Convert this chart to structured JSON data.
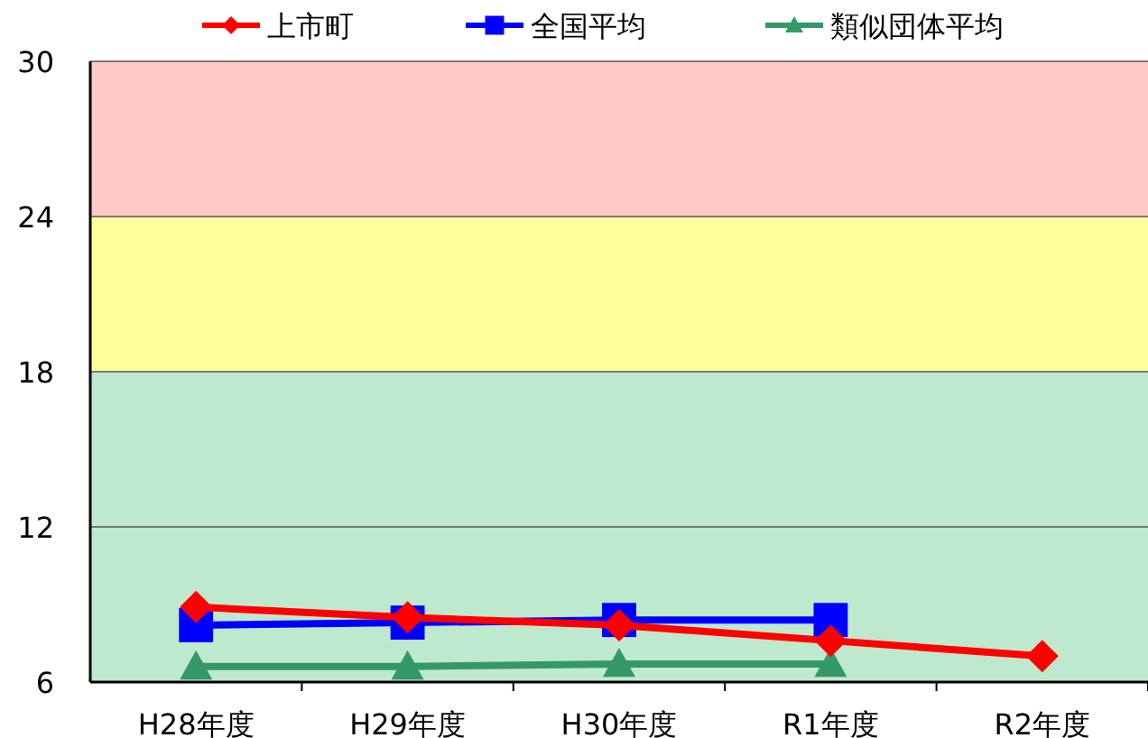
{
  "chart_data": {
    "type": "line",
    "categories": [
      "H28年度",
      "H29年度",
      "H30年度",
      "R1年度",
      "R2年度"
    ],
    "series": [
      {
        "name": "上市町",
        "color": "#ff0000",
        "marker": "diamond",
        "values": [
          8.9,
          8.5,
          8.2,
          7.6,
          7.0
        ]
      },
      {
        "name": "全国平均",
        "color": "#0000ff",
        "marker": "square",
        "values": [
          8.2,
          8.3,
          8.4,
          8.4,
          null
        ]
      },
      {
        "name": "類似団体平均",
        "color": "#339966",
        "marker": "triangle",
        "values": [
          6.6,
          6.6,
          6.7,
          6.7,
          null
        ]
      }
    ],
    "ylim": [
      6,
      30
    ],
    "yticks": [
      6,
      12,
      18,
      24,
      30
    ],
    "grid": "y",
    "legend": "top",
    "bands": [
      {
        "axis": "y",
        "from": 6,
        "to": 18,
        "color": "#bfe9cf"
      },
      {
        "axis": "y",
        "from": 18,
        "to": 24,
        "color": "#ffff99"
      },
      {
        "axis": "y",
        "from": 24,
        "to": 30,
        "color": "#ffc9c9"
      }
    ]
  }
}
